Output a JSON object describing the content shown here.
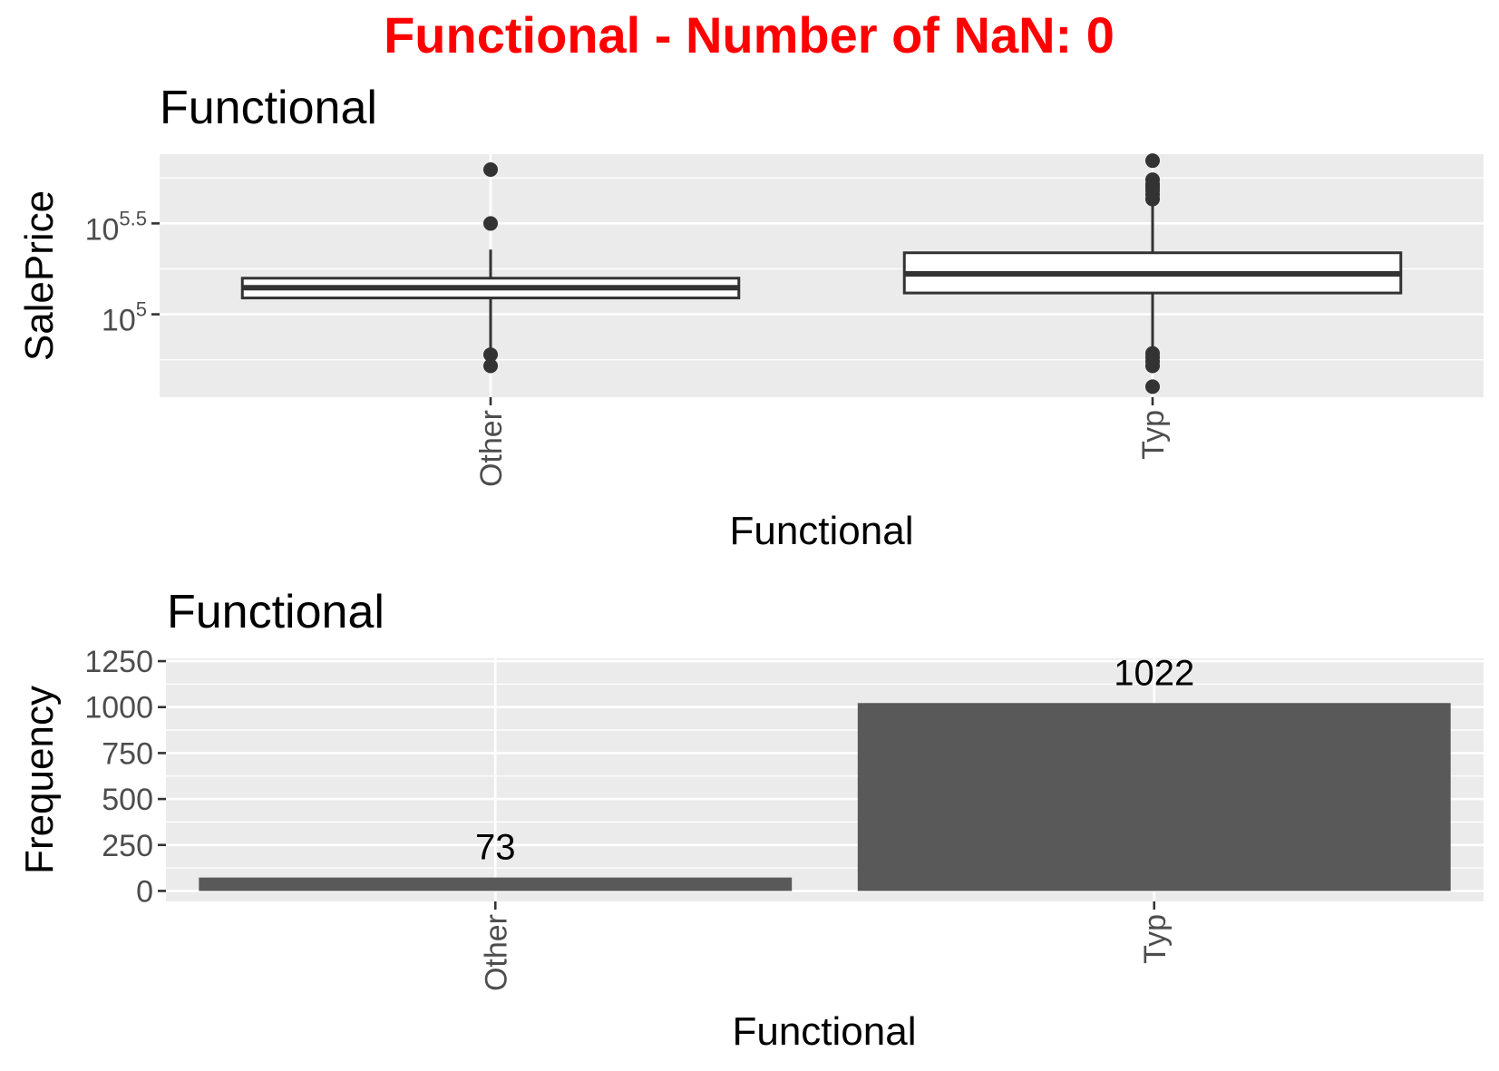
{
  "figure": {
    "title": "Functional - Number of NaN: 0",
    "title_color": "#ff0000"
  },
  "chart_data": [
    {
      "type": "box",
      "title": "Functional",
      "xlabel": "Functional",
      "ylabel": "SalePrice",
      "yscale": "log10",
      "categories": [
        "Other",
        "Typ"
      ],
      "y_ticks": [
        {
          "base": "10",
          "exp": "5",
          "value": 100000
        },
        {
          "base": "10",
          "exp": "5.5",
          "value": 316228
        }
      ],
      "ylim": [
        35000,
        760000
      ],
      "boxes": [
        {
          "category": "Other",
          "whisker_low": 61000,
          "q1": 123000,
          "median": 140000,
          "q3": 158000,
          "whisker_high": 227000,
          "outliers": [
            60000,
            52000,
            316000,
            625000
          ]
        },
        {
          "category": "Typ",
          "whisker_low": 62000,
          "q1": 131000,
          "median": 167000,
          "q3": 218000,
          "whisker_high": 405000,
          "outliers": [
            40000,
            52000,
            55000,
            58000,
            61000,
            430000,
            455000,
            480000,
            500000,
            520000,
            550000,
            700000
          ]
        }
      ],
      "colors": {
        "panel": "#ebebeb",
        "grid": "#ffffff",
        "box_outline": "#333333",
        "box_fill": "#ffffff"
      }
    },
    {
      "type": "bar",
      "title": "Functional",
      "xlabel": "Functional",
      "ylabel": "Frequency",
      "categories": [
        "Other",
        "Typ"
      ],
      "values": [
        73,
        1022
      ],
      "data_labels": [
        "73",
        "1022"
      ],
      "y_ticks": [
        0,
        250,
        500,
        750,
        1000,
        1250
      ],
      "ylim": [
        -57,
        1265
      ],
      "colors": {
        "panel": "#ebebeb",
        "grid": "#ffffff",
        "bar": "#595959"
      }
    }
  ]
}
